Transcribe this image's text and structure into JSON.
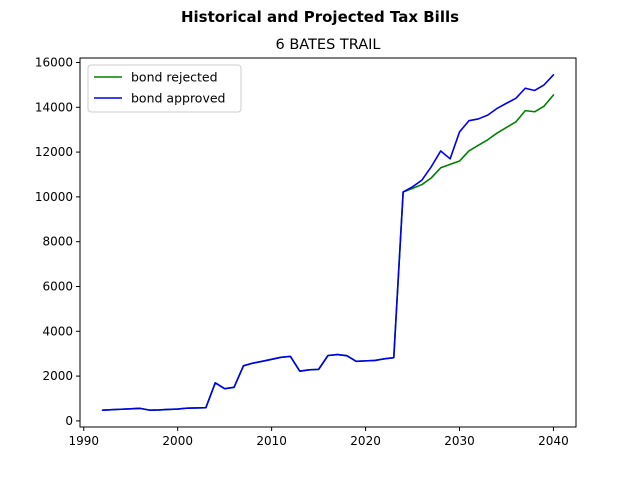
{
  "chart_data": {
    "type": "line",
    "suptitle": "Historical and Projected Tax Bills",
    "title": "6 BATES TRAIL",
    "xlabel": "",
    "ylabel": "",
    "xlim": [
      1989.6,
      2042.4
    ],
    "ylim": [
      -272,
      16200
    ],
    "xticks": [
      1990,
      2000,
      2010,
      2020,
      2030,
      2040
    ],
    "yticks": [
      0,
      2000,
      4000,
      6000,
      8000,
      10000,
      12000,
      14000,
      16000
    ],
    "grid": false,
    "legend_position": "upper left",
    "series": [
      {
        "name": "bond rejected",
        "color": "#008000",
        "x": [
          1992,
          1993,
          1994,
          1995,
          1996,
          1997,
          1998,
          1999,
          2000,
          2001,
          2002,
          2003,
          2004,
          2005,
          2006,
          2007,
          2008,
          2009,
          2010,
          2011,
          2012,
          2013,
          2014,
          2015,
          2016,
          2017,
          2018,
          2019,
          2020,
          2021,
          2022,
          2023,
          2024,
          2025,
          2026,
          2027,
          2028,
          2029,
          2030,
          2031,
          2032,
          2033,
          2034,
          2035,
          2036,
          2037,
          2038,
          2039,
          2040
        ],
        "y": [
          480,
          500,
          520,
          540,
          560,
          480,
          490,
          510,
          530,
          570,
          580,
          590,
          1700,
          1440,
          1500,
          2460,
          2580,
          2660,
          2750,
          2840,
          2880,
          2220,
          2280,
          2300,
          2920,
          2960,
          2910,
          2660,
          2680,
          2700,
          2770,
          2820,
          10220,
          10380,
          10550,
          10850,
          11300,
          11450,
          11600,
          12050,
          12300,
          12550,
          12850,
          13100,
          13350,
          13850,
          13800,
          14050,
          14550
        ]
      },
      {
        "name": "bond approved",
        "color": "#0000ee",
        "x": [
          1992,
          1993,
          1994,
          1995,
          1996,
          1997,
          1998,
          1999,
          2000,
          2001,
          2002,
          2003,
          2004,
          2005,
          2006,
          2007,
          2008,
          2009,
          2010,
          2011,
          2012,
          2013,
          2014,
          2015,
          2016,
          2017,
          2018,
          2019,
          2020,
          2021,
          2022,
          2023,
          2024,
          2025,
          2026,
          2027,
          2028,
          2029,
          2030,
          2031,
          2032,
          2033,
          2034,
          2035,
          2036,
          2037,
          2038,
          2039,
          2040
        ],
        "y": [
          480,
          500,
          520,
          540,
          560,
          480,
          490,
          510,
          530,
          570,
          580,
          590,
          1700,
          1440,
          1500,
          2460,
          2580,
          2660,
          2750,
          2840,
          2880,
          2220,
          2280,
          2300,
          2920,
          2960,
          2910,
          2660,
          2680,
          2700,
          2770,
          2820,
          10220,
          10450,
          10750,
          11350,
          12050,
          11700,
          12900,
          13400,
          13480,
          13650,
          13950,
          14180,
          14400,
          14850,
          14750,
          15000,
          15450
        ]
      }
    ]
  }
}
